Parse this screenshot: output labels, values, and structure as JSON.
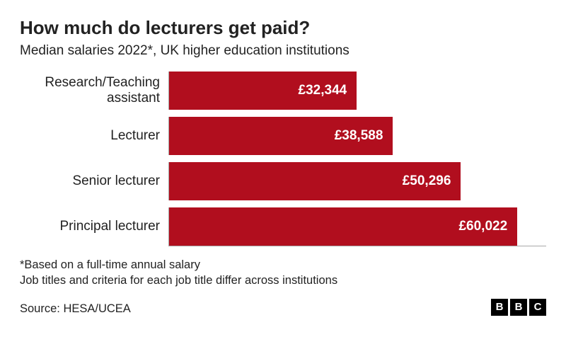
{
  "title": "How much do lecturers get paid?",
  "subtitle": "Median salaries 2022*, UK higher education institutions",
  "chart": {
    "type": "bar-horizontal",
    "bar_color": "#b10e1e",
    "value_text_color": "#ffffff",
    "background_color": "#ffffff",
    "axis_color": "#a9a9a9",
    "label_fontsize": 19,
    "value_fontsize": 19,
    "max_value": 65000,
    "bars": [
      {
        "label_line1": "Research/Teaching",
        "label_line2": "assistant",
        "value": 32344,
        "value_label": "£32,344"
      },
      {
        "label_line1": "Lecturer",
        "label_line2": "",
        "value": 38588,
        "value_label": "£38,588"
      },
      {
        "label_line1": "Senior lecturer",
        "label_line2": "",
        "value": 50296,
        "value_label": "£50,296"
      },
      {
        "label_line1": "Principal lecturer",
        "label_line2": "",
        "value": 60022,
        "value_label": "£60,022"
      }
    ]
  },
  "footnote1": "*Based on a full-time annual salary",
  "footnote2": "Job titles and criteria for each job title differ across institutions",
  "source": "Source: HESA/UCEA",
  "logo": {
    "letters": [
      "B",
      "B",
      "C"
    ]
  }
}
